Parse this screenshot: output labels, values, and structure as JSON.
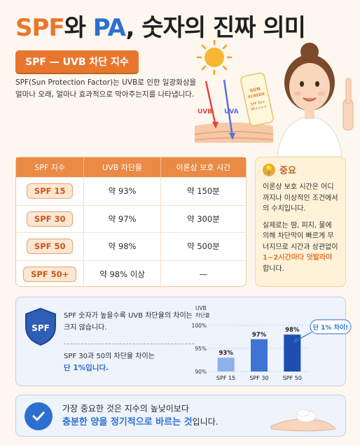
{
  "title": {
    "spf": "SPF",
    "connector": "와 ",
    "pa": "PA",
    "rest": ", 숫자의 진짜 의미"
  },
  "section": {
    "label": "SPF — UVB 차단 지수"
  },
  "intro": {
    "text": "SPF(Sun Protection Factor)는 UVB로 인한 일광화상을 얼마나 오래, 얼마나 효과적으로 막아주는지를 나타냅니다."
  },
  "illustration": {
    "uvb_label": "UVB",
    "uva_label": "UVA",
    "tube_line1": "SUN",
    "tube_line2": "SCREEN",
    "tube_line3": "SPF 50+",
    "tube_line4": "PA++++"
  },
  "table": {
    "headers": [
      "SPF 지수",
      "UVB 차단율",
      "이론상 보호 시간"
    ],
    "rows": [
      {
        "spf": "SPF 15",
        "block": "약 93%",
        "time": "약 150분"
      },
      {
        "spf": "SPF 30",
        "block": "약 97%",
        "time": "약 300분"
      },
      {
        "spf": "SPF 50",
        "block": "약 98%",
        "time": "약 500분"
      },
      {
        "spf": "SPF 50+",
        "block": "약 98% 이상",
        "time": "—"
      }
    ]
  },
  "important": {
    "title": "중요",
    "para1": "이론상 보호 시간은 어디까지나 이상적인 조건에서의 수치입니다.",
    "para2_pre": "실제로는 땀, 피지, 물에 의해 차단막이 빠르게 무너지므로 시간과 상관없이 ",
    "para2_hl": "1~2시간마다 덧발라야",
    "para2_post": " 합니다."
  },
  "panel": {
    "shield_text": "SPF",
    "text1": "SPF 숫자가 높을수록 UVB 차단율의 차이는 크지 않습니다.",
    "text2_pre": "SPF 30과 50의 차단율 차이는",
    "text2_hl": "단 1%입니다.",
    "callout": "단 1% 차이!"
  },
  "chart_data": {
    "type": "bar",
    "categories": [
      "SPF 15",
      "SPF 30",
      "SPF 50"
    ],
    "values": [
      93,
      97,
      98
    ],
    "value_labels": [
      "93%",
      "97%",
      "98%"
    ],
    "ylabel_line1": "UVB",
    "ylabel_line2": "차단율",
    "ylim": [
      90,
      100
    ],
    "yticks": [
      "100%",
      "95%",
      "90%"
    ],
    "colors": [
      "#8fb1ea",
      "#3f74d6",
      "#1e4fb0"
    ]
  },
  "bottom": {
    "line1": "가장 중요한 것은 지수의 높낮이보다",
    "line2_hl": "충분한 양을 정기적으로 바르는 것",
    "line2_post": "입니다."
  }
}
